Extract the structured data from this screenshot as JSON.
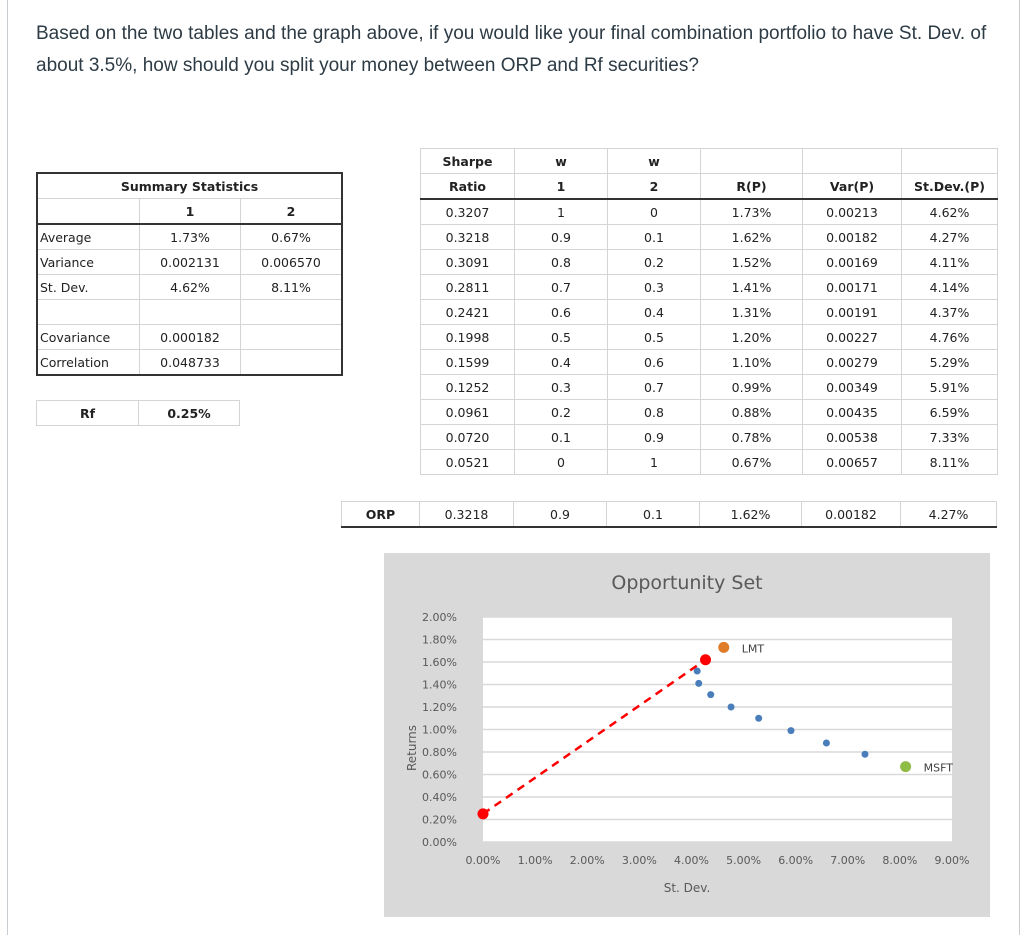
{
  "question": "Based on the two tables and the graph above, if you would like your final combination portfolio to have St. Dev. of about 3.5%, how should you split your money between ORP and Rf securities?",
  "summary_table": {
    "title": "Summary Statistics",
    "columns": [
      "",
      "1",
      "2"
    ],
    "rows": [
      [
        "Average",
        "1.73%",
        "0.67%"
      ],
      [
        "Variance",
        "0.002131",
        "0.006570"
      ],
      [
        "St. Dev.",
        "4.62%",
        "8.11%"
      ],
      [
        "",
        "",
        ""
      ],
      [
        "Covariance",
        "0.000182",
        ""
      ],
      [
        "Correlation",
        "0.048733",
        ""
      ]
    ]
  },
  "rf_table": {
    "label": "Rf",
    "value": "0.25%"
  },
  "portfolio_table": {
    "header1": [
      "Sharpe",
      "w",
      "w",
      "",
      "",
      ""
    ],
    "header2": [
      "Ratio",
      "1",
      "2",
      "R(P)",
      "Var(P)",
      "St.Dev.(P)"
    ],
    "rows": [
      [
        "0.3207",
        "1",
        "0",
        "1.73%",
        "0.00213",
        "4.62%"
      ],
      [
        "0.3218",
        "0.9",
        "0.1",
        "1.62%",
        "0.00182",
        "4.27%"
      ],
      [
        "0.3091",
        "0.8",
        "0.2",
        "1.52%",
        "0.00169",
        "4.11%"
      ],
      [
        "0.2811",
        "0.7",
        "0.3",
        "1.41%",
        "0.00171",
        "4.14%"
      ],
      [
        "0.2421",
        "0.6",
        "0.4",
        "1.31%",
        "0.00191",
        "4.37%"
      ],
      [
        "0.1998",
        "0.5",
        "0.5",
        "1.20%",
        "0.00227",
        "4.76%"
      ],
      [
        "0.1599",
        "0.4",
        "0.6",
        "1.10%",
        "0.00279",
        "5.29%"
      ],
      [
        "0.1252",
        "0.3",
        "0.7",
        "0.99%",
        "0.00349",
        "5.91%"
      ],
      [
        "0.0961",
        "0.2",
        "0.8",
        "0.88%",
        "0.00435",
        "6.59%"
      ],
      [
        "0.0720",
        "0.1",
        "0.9",
        "0.78%",
        "0.00538",
        "7.33%"
      ],
      [
        "0.0521",
        "0",
        "1",
        "0.67%",
        "0.00657",
        "8.11%"
      ]
    ]
  },
  "orp_row": [
    "ORP",
    "0.3218",
    "0.9",
    "0.1",
    "1.62%",
    "0.00182",
    "4.27%"
  ],
  "chart_data": {
    "type": "scatter",
    "title": "Opportunity Set",
    "xlabel": "St. Dev.",
    "ylabel": "Returns",
    "xlim": [
      0,
      9
    ],
    "ylim": [
      0,
      2
    ],
    "x_ticks": [
      "0.00%",
      "1.00%",
      "2.00%",
      "3.00%",
      "4.00%",
      "5.00%",
      "6.00%",
      "7.00%",
      "8.00%",
      "9.00%"
    ],
    "y_ticks": [
      "0.00%",
      "0.20%",
      "0.40%",
      "0.60%",
      "0.80%",
      "1.00%",
      "1.20%",
      "1.40%",
      "1.60%",
      "1.80%",
      "2.00%"
    ],
    "grid": "horizontal",
    "background": "#d9d9d9",
    "series": [
      {
        "color": "#4a7ebb",
        "points": [
          [
            4.27,
            1.62
          ],
          [
            4.11,
            1.52
          ],
          [
            4.14,
            1.41
          ],
          [
            4.37,
            1.31
          ],
          [
            4.76,
            1.2
          ],
          [
            5.29,
            1.1
          ],
          [
            5.91,
            0.99
          ],
          [
            6.59,
            0.88
          ],
          [
            7.33,
            0.78
          ]
        ]
      },
      {
        "name": "LMT",
        "color": "#e07b2a",
        "points": [
          [
            4.62,
            1.73
          ]
        ]
      },
      {
        "name": "MSFT",
        "color": "#8fbc45",
        "points": [
          [
            8.11,
            0.67
          ]
        ]
      },
      {
        "color": "#ff0000",
        "points": [
          [
            0,
            0.25
          ],
          [
            4.27,
            1.62
          ]
        ],
        "line": "dashed"
      }
    ]
  }
}
